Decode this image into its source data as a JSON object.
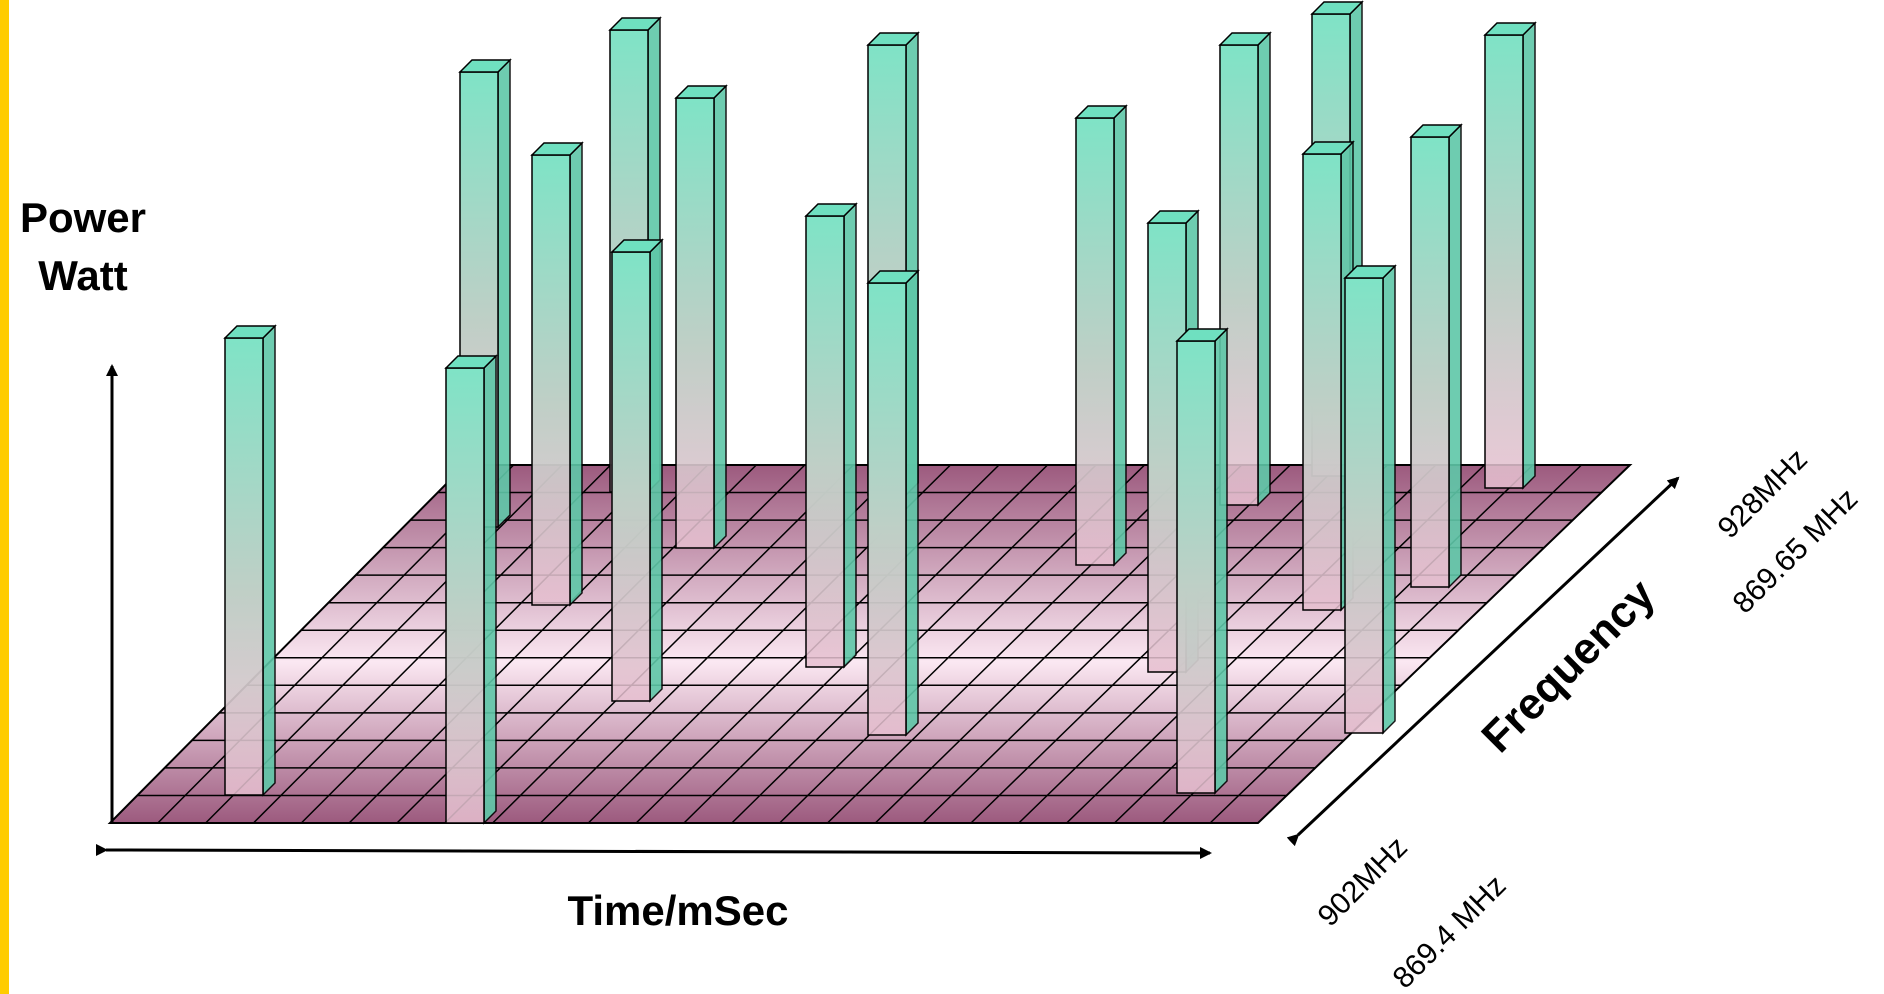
{
  "labels": {
    "power": "Power",
    "watt": "Watt",
    "time": "Time/mSec",
    "frequency": "Frequency",
    "freq_high_1": "928MHz",
    "freq_high_2": "869.65 MHz",
    "freq_low_1": "902MHz",
    "freq_low_2": "869.4 MHz"
  },
  "colors": {
    "left_border": "#ffcc00",
    "grid_dark": "#9c5a7e",
    "grid_light": "#fbe8f2",
    "bar_top": "#7fe3c6",
    "bar_bottom": "#e7bfd0",
    "bar_side": "#5fc7a8",
    "bar_cap": "#6fe0c0"
  }
}
